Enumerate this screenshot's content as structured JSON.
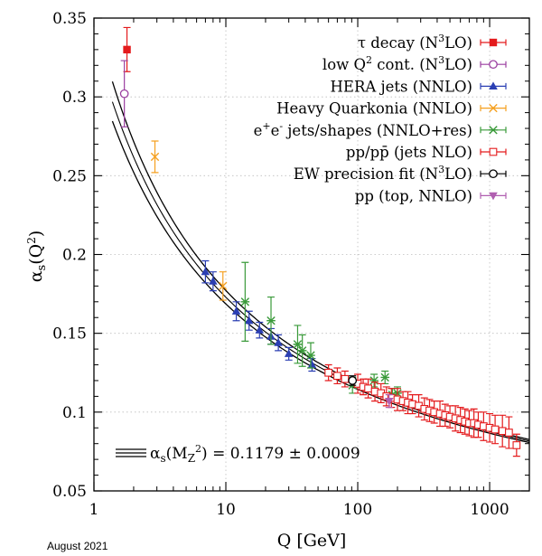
{
  "chart_data": {
    "type": "scatter",
    "title": "",
    "xlabel": "Q [GeV]",
    "ylabel_main": "α",
    "ylabel_sub": "s",
    "ylabel_tail": "(Q",
    "ylabel_sup": "2",
    "ylabel_end": ")",
    "xscale": "log",
    "xlim": [
      1,
      2000
    ],
    "ylim": [
      0.05,
      0.35
    ],
    "x_ticks": [
      {
        "value": 1,
        "label": "1"
      },
      {
        "value": 10,
        "label": "10"
      },
      {
        "value": 100,
        "label": "100"
      },
      {
        "value": 1000,
        "label": "1000"
      }
    ],
    "y_ticks": [
      {
        "value": 0.05,
        "label": "0.05"
      },
      {
        "value": 0.1,
        "label": "0.1"
      },
      {
        "value": 0.15,
        "label": "0.15"
      },
      {
        "value": 0.2,
        "label": "0.2"
      },
      {
        "value": 0.25,
        "label": "0.25"
      },
      {
        "value": 0.3,
        "label": "0.3"
      },
      {
        "value": 0.35,
        "label": "0.35"
      }
    ],
    "grid": true,
    "legend_position": "top-right",
    "fit": {
      "alpha_mz": 0.1179,
      "uncertainty": 0.0009,
      "label_main": "α",
      "label_sub": "s",
      "label_mid": "(M",
      "label_sub2": "Z",
      "label_sup": "2",
      "label_tail": ") = 0.1179 ± 0.0009"
    },
    "series": [
      {
        "name": "τ decay (N³LO)",
        "l_main": "τ decay (N",
        "l_sup": "3",
        "l_tail": "LO)",
        "color": "#e41a1c",
        "marker": "square-filled",
        "points": [
          [
            1.78,
            0.33,
            0.014
          ]
        ]
      },
      {
        "name": "low Q² cont. (N³LO)",
        "l_main": "low Q",
        "l_sup": "2",
        "l_tail": " cont. (N",
        "l_sup2": "3",
        "l_tail2": "LO)",
        "color": "#9b3fa0",
        "marker": "circle-open",
        "points": [
          [
            1.7,
            0.302,
            0.021
          ]
        ]
      },
      {
        "name": "HERA jets (NNLO)",
        "l_main": "HERA jets (NNLO)",
        "color": "#2b3fb3",
        "marker": "triangle-up-filled",
        "points": [
          [
            7.0,
            0.189,
            0.007
          ],
          [
            8.0,
            0.183,
            0.006
          ],
          [
            12.0,
            0.164,
            0.006
          ],
          [
            15.0,
            0.158,
            0.006
          ],
          [
            18.0,
            0.152,
            0.005
          ],
          [
            22.0,
            0.148,
            0.005
          ],
          [
            25.0,
            0.144,
            0.005
          ],
          [
            30.0,
            0.137,
            0.004
          ],
          [
            45.0,
            0.13,
            0.004
          ]
        ]
      },
      {
        "name": "Heavy Quarkonia (NNLO)",
        "l_main": "Heavy Quarkonia (NNLO)",
        "color": "#f5a020",
        "marker": "cross",
        "points": [
          [
            2.9,
            0.262,
            0.01
          ],
          [
            9.5,
            0.18,
            0.009
          ]
        ]
      },
      {
        "name": "e⁺e⁻ jets/shapes (NNLO+res)",
        "l_main": "e",
        "l_sup": "+",
        "l_tail": "e",
        "l_sup2": "-",
        "l_tail2": " jets/shapes (NNLO+res)",
        "color": "#3a9a3a",
        "marker": "asterisk",
        "points": [
          [
            14.0,
            0.17,
            0.025
          ],
          [
            22.0,
            0.158,
            0.015
          ],
          [
            35.0,
            0.143,
            0.012
          ],
          [
            38.0,
            0.139,
            0.01
          ],
          [
            44.0,
            0.136,
            0.008
          ],
          [
            91.2,
            0.117,
            0.005
          ],
          [
            133,
            0.12,
            0.004
          ],
          [
            161,
            0.122,
            0.004
          ],
          [
            183,
            0.111,
            0.004
          ],
          [
            200,
            0.112,
            0.004
          ]
        ]
      },
      {
        "name": "pp/pp̄ (jets NLO)",
        "l_main": "pp/pp̄ (jets NLO)",
        "color": "#e41a1c",
        "marker": "square-open",
        "points": [
          [
            60,
            0.125,
            0.005
          ],
          [
            70,
            0.123,
            0.005
          ],
          [
            80,
            0.121,
            0.005
          ],
          [
            100,
            0.118,
            0.006
          ],
          [
            110,
            0.116,
            0.005
          ],
          [
            120,
            0.115,
            0.006
          ],
          [
            135,
            0.113,
            0.006
          ],
          [
            150,
            0.112,
            0.006
          ],
          [
            165,
            0.11,
            0.006
          ],
          [
            180,
            0.109,
            0.006
          ],
          [
            200,
            0.108,
            0.007
          ],
          [
            220,
            0.107,
            0.006
          ],
          [
            240,
            0.106,
            0.007
          ],
          [
            260,
            0.105,
            0.006
          ],
          [
            290,
            0.104,
            0.007
          ],
          [
            320,
            0.102,
            0.007
          ],
          [
            350,
            0.101,
            0.007
          ],
          [
            380,
            0.1,
            0.007
          ],
          [
            420,
            0.099,
            0.008
          ],
          [
            460,
            0.098,
            0.007
          ],
          [
            500,
            0.097,
            0.007
          ],
          [
            550,
            0.096,
            0.008
          ],
          [
            600,
            0.095,
            0.008
          ],
          [
            650,
            0.094,
            0.008
          ],
          [
            700,
            0.093,
            0.008
          ],
          [
            760,
            0.093,
            0.009
          ],
          [
            820,
            0.092,
            0.008
          ],
          [
            900,
            0.091,
            0.009
          ],
          [
            1000,
            0.09,
            0.009
          ],
          [
            1100,
            0.089,
            0.009
          ],
          [
            1250,
            0.088,
            0.01
          ],
          [
            1400,
            0.087,
            0.01
          ],
          [
            1600,
            0.079,
            0.007
          ]
        ]
      },
      {
        "name": "EW precision fit (N³LO)",
        "l_main": "EW precision fit (N",
        "l_sup": "3",
        "l_tail": "LO)",
        "color": "#000000",
        "marker": "circle-open",
        "points": [
          [
            91.2,
            0.12,
            0.003
          ]
        ]
      },
      {
        "name": "pp (top, NNLO)",
        "l_main": "pp (top, NNLO)",
        "color": "#b05fb0",
        "marker": "triangle-down-filled",
        "points": [
          [
            173,
            0.107,
            0.004
          ]
        ]
      }
    ]
  },
  "footer": {
    "date": "August 2021"
  }
}
